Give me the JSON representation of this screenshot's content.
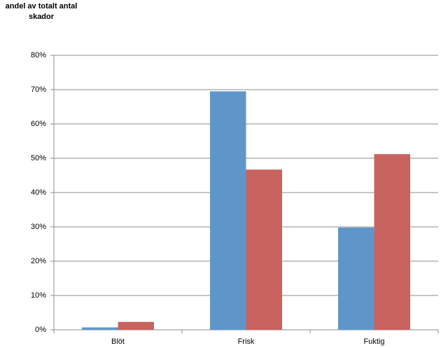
{
  "chart_data": {
    "type": "bar",
    "ylabel": "andel av totalt antal skador",
    "categories": [
      "Blöt",
      "Frisk",
      "Fuktig"
    ],
    "series": [
      {
        "color": "#5f96ca",
        "values": [
          0.7,
          69.5,
          29.8
        ]
      },
      {
        "color": "#c9635f",
        "values": [
          2.3,
          46.7,
          51.2
        ]
      }
    ],
    "ylim": [
      0,
      80
    ],
    "yticks": [
      {
        "value": 0,
        "label": "0%"
      },
      {
        "value": 10,
        "label": "10%"
      },
      {
        "value": 20,
        "label": "20%"
      },
      {
        "value": 30,
        "label": "30%"
      },
      {
        "value": 40,
        "label": "40%"
      },
      {
        "value": 50,
        "label": "50%"
      },
      {
        "value": 60,
        "label": "60%"
      },
      {
        "value": 70,
        "label": "70%"
      },
      {
        "value": 80,
        "label": "80%"
      }
    ],
    "grid": true
  }
}
